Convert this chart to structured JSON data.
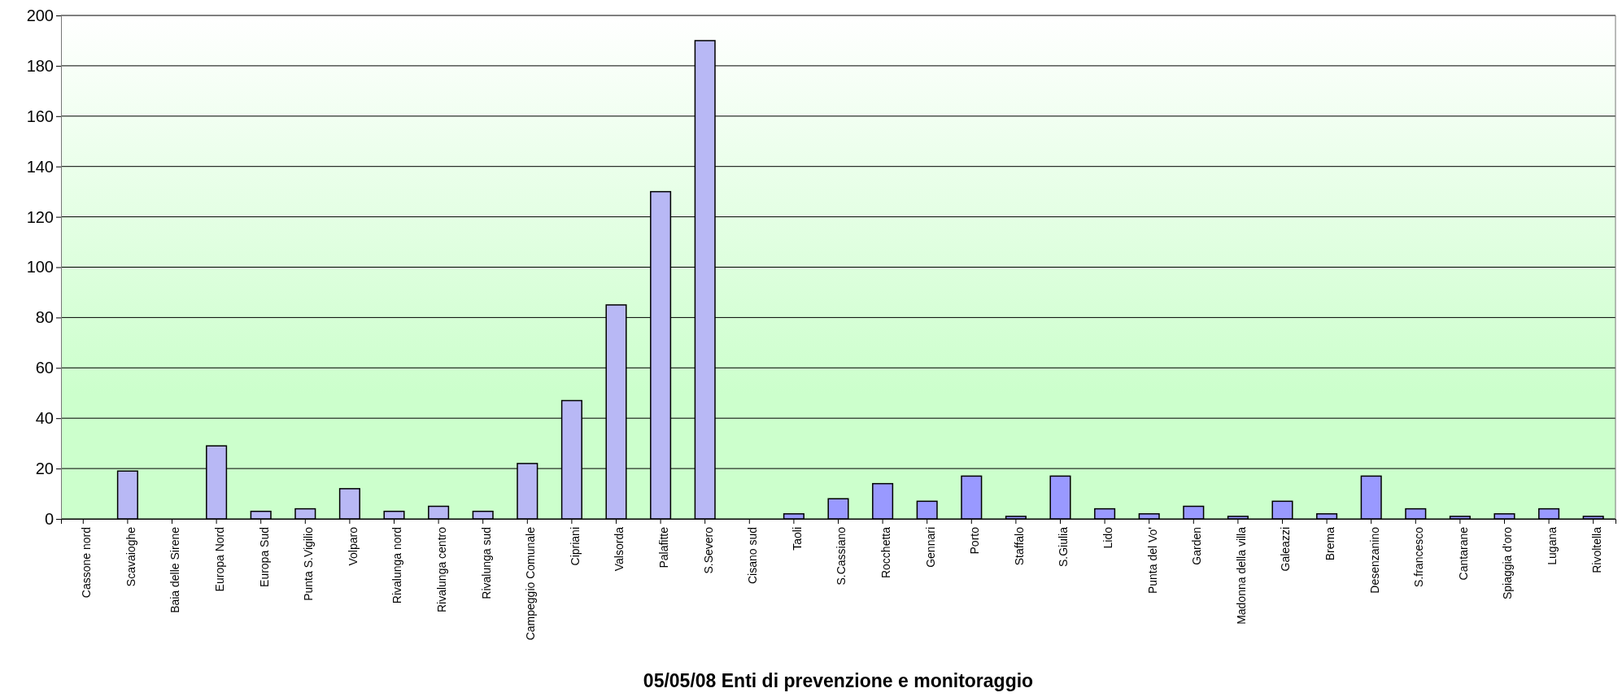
{
  "chart_data": {
    "type": "bar",
    "xlabel": "05/05/08 Enti di prevenzione e monitoraggio",
    "categories": [
      "Cassone nord",
      "Scavaioghe",
      "Baia delle Sirene",
      "Europa Nord",
      "Europa Sud",
      "Punta S.Vigilio",
      "Volparo",
      "Rivalunga nord",
      "Rivalunga centro",
      "Rivalunga sud",
      "Campeggio Comunale",
      "Cipriani",
      "Valsorda",
      "Palafitte",
      "S.Severo",
      "Cisano sud",
      "Taoli",
      "S.Cassiano",
      "Rocchetta",
      "Gennari",
      "Porto",
      "Staffalo",
      "S.Giulia",
      "Lido",
      "Punta del Vo'",
      "Garden",
      "Madonna della villa",
      "Galeazzi",
      "Brema",
      "Desenzanino",
      "S.francesco",
      "Cantarane",
      "Spiaggia d'oro",
      "Lugana",
      "Rivoltella"
    ],
    "values": [
      0,
      19,
      0,
      29,
      3,
      4,
      12,
      3,
      5,
      3,
      22,
      47,
      85,
      130,
      190,
      0,
      2,
      8,
      14,
      7,
      17,
      1,
      17,
      4,
      2,
      5,
      1,
      7,
      2,
      17,
      4,
      1,
      2,
      4,
      1
    ],
    "colors": [
      "#b8b8f5",
      "#b8b8f5",
      "#b8b8f5",
      "#b8b8f5",
      "#b8b8f5",
      "#b8b8f5",
      "#b8b8f5",
      "#b8b8f5",
      "#b8b8f5",
      "#b8b8f5",
      "#b8b8f5",
      "#b8b8f5",
      "#b8b8f5",
      "#b8b8f5",
      "#b8b8f5",
      "#b8b8f5",
      "#9999ff",
      "#9999ff",
      "#9999ff",
      "#9999ff",
      "#9999ff",
      "#9999ff",
      "#9999ff",
      "#9999ff",
      "#9999ff",
      "#9999ff",
      "#9999ff",
      "#9999ff",
      "#9999ff",
      "#9999ff",
      "#9999ff",
      "#9999ff",
      "#9999ff",
      "#9999ff",
      "#9999ff"
    ],
    "ylim": [
      0,
      200
    ],
    "yticks": [
      0,
      20,
      40,
      60,
      80,
      100,
      120,
      140,
      160,
      180,
      200
    ],
    "grid": "y"
  }
}
